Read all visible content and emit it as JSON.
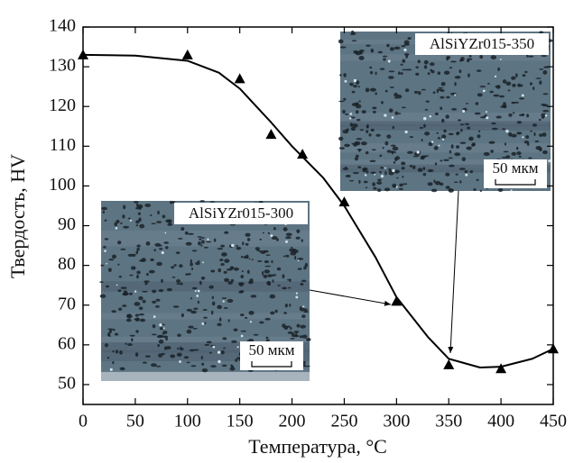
{
  "chart_data": {
    "type": "scatter",
    "x_label": "Температура, °C",
    "y_label": "Твердость, HV",
    "x": [
      0,
      100,
      150,
      180,
      210,
      250,
      300,
      350,
      400,
      450
    ],
    "series": [
      {
        "color": "#000000",
        "values": [
          133,
          133,
          127,
          113,
          108,
          96,
          71,
          55,
          54,
          59
        ]
      }
    ],
    "curve": {
      "color": "#000000",
      "x": [
        0,
        50,
        100,
        130,
        150,
        180,
        200,
        230,
        250,
        280,
        300,
        330,
        350,
        380,
        400,
        430,
        450
      ],
      "values": [
        133,
        132.8,
        131.5,
        128.5,
        124.5,
        116,
        110,
        102,
        95,
        82,
        72,
        62,
        56.5,
        54.3,
        54.5,
        56.5,
        59
      ]
    },
    "xlim": [
      0,
      450
    ],
    "xticks": [
      0,
      50,
      100,
      150,
      200,
      250,
      300,
      350,
      400,
      450
    ],
    "ylim": [
      45,
      140
    ],
    "yticks": [
      50,
      60,
      70,
      80,
      90,
      100,
      110,
      120,
      130,
      140
    ],
    "annotations": [
      {
        "text": "AlSiYZr015-300",
        "scale": "50 мкм"
      },
      {
        "text": "AlSiYZr015-350",
        "scale": "50 мкм"
      }
    ]
  }
}
